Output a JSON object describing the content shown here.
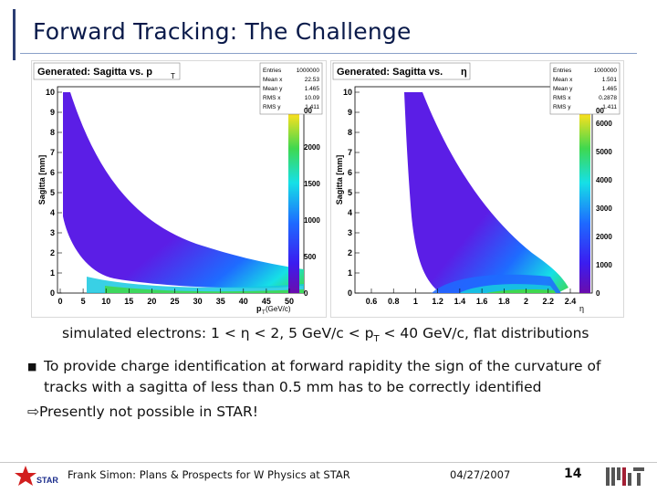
{
  "slide": {
    "title": "Forward Tracking: The Challenge",
    "caption_pre": "simulated electrons: 1 < ",
    "caption_eta": "η",
    "caption_mid": " < 2, 5 GeV/c < p",
    "caption_sub": "T",
    "caption_post": " < 40 GeV/c, flat distributions",
    "bullet_text": "To provide charge identification at forward rapidity the sign of the curvature of tracks with a sagitta of less than 0.5 mm has to be correctly identified",
    "conclusion": "⇨Presently not possible in STAR!",
    "footer_author": "Frank Simon: Plans & Prospects for W Physics at STAR",
    "footer_date": "04/27/2007",
    "footer_page": "14"
  },
  "plots": [
    {
      "title": "Generated: Sagitta vs. p",
      "title_sub": "T",
      "ylabel": "Sagitta [mm]",
      "xlabel": "p",
      "xlabel_sub": "T",
      "xlabel_post": " (GeV/c)",
      "xticks": [
        "0",
        "5",
        "10",
        "15",
        "20",
        "25",
        "30",
        "35",
        "40",
        "45",
        "50"
      ],
      "yticks": [
        "0",
        "1",
        "2",
        "3",
        "4",
        "5",
        "6",
        "7",
        "8",
        "9",
        "10"
      ],
      "zticks": [
        "0",
        "500",
        "1000",
        "1500",
        "2000"
      ],
      "zvisible_top": "00",
      "stats": [
        [
          "Entries",
          "1000000"
        ],
        [
          "Mean x",
          "22.53"
        ],
        [
          "Mean y",
          "1.465"
        ],
        [
          "RMS x",
          "10.09"
        ],
        [
          "RMS y",
          "1.411"
        ]
      ]
    },
    {
      "title": "Generated: Sagitta vs. ",
      "title_eta": "η",
      "ylabel": "Sagitta [mm]",
      "xlabel": "η",
      "xticks": [
        "0.6",
        "0.8",
        "1",
        "1.2",
        "1.4",
        "1.6",
        "1.8",
        "2",
        "2.2",
        "2.4"
      ],
      "yticks": [
        "0",
        "1",
        "2",
        "3",
        "4",
        "5",
        "6",
        "7",
        "8",
        "9",
        "10"
      ],
      "zticks": [
        "0",
        "1000",
        "2000",
        "3000",
        "4000",
        "5000",
        "6000"
      ],
      "zvisible_top": "00",
      "stats": [
        [
          "Entries",
          "1000000"
        ],
        [
          "Mean x",
          "1.501"
        ],
        [
          "Mean y",
          "1.465"
        ],
        [
          "RMS x",
          "0.2878"
        ],
        [
          "RMS y",
          "1.411"
        ]
      ]
    }
  ],
  "colors": {
    "title": "#0a1a4a",
    "band_purple": "#5b1ee6",
    "band_blue": "#1e6bff",
    "band_cyan": "#16e0e6",
    "band_green": "#3fd84f"
  }
}
